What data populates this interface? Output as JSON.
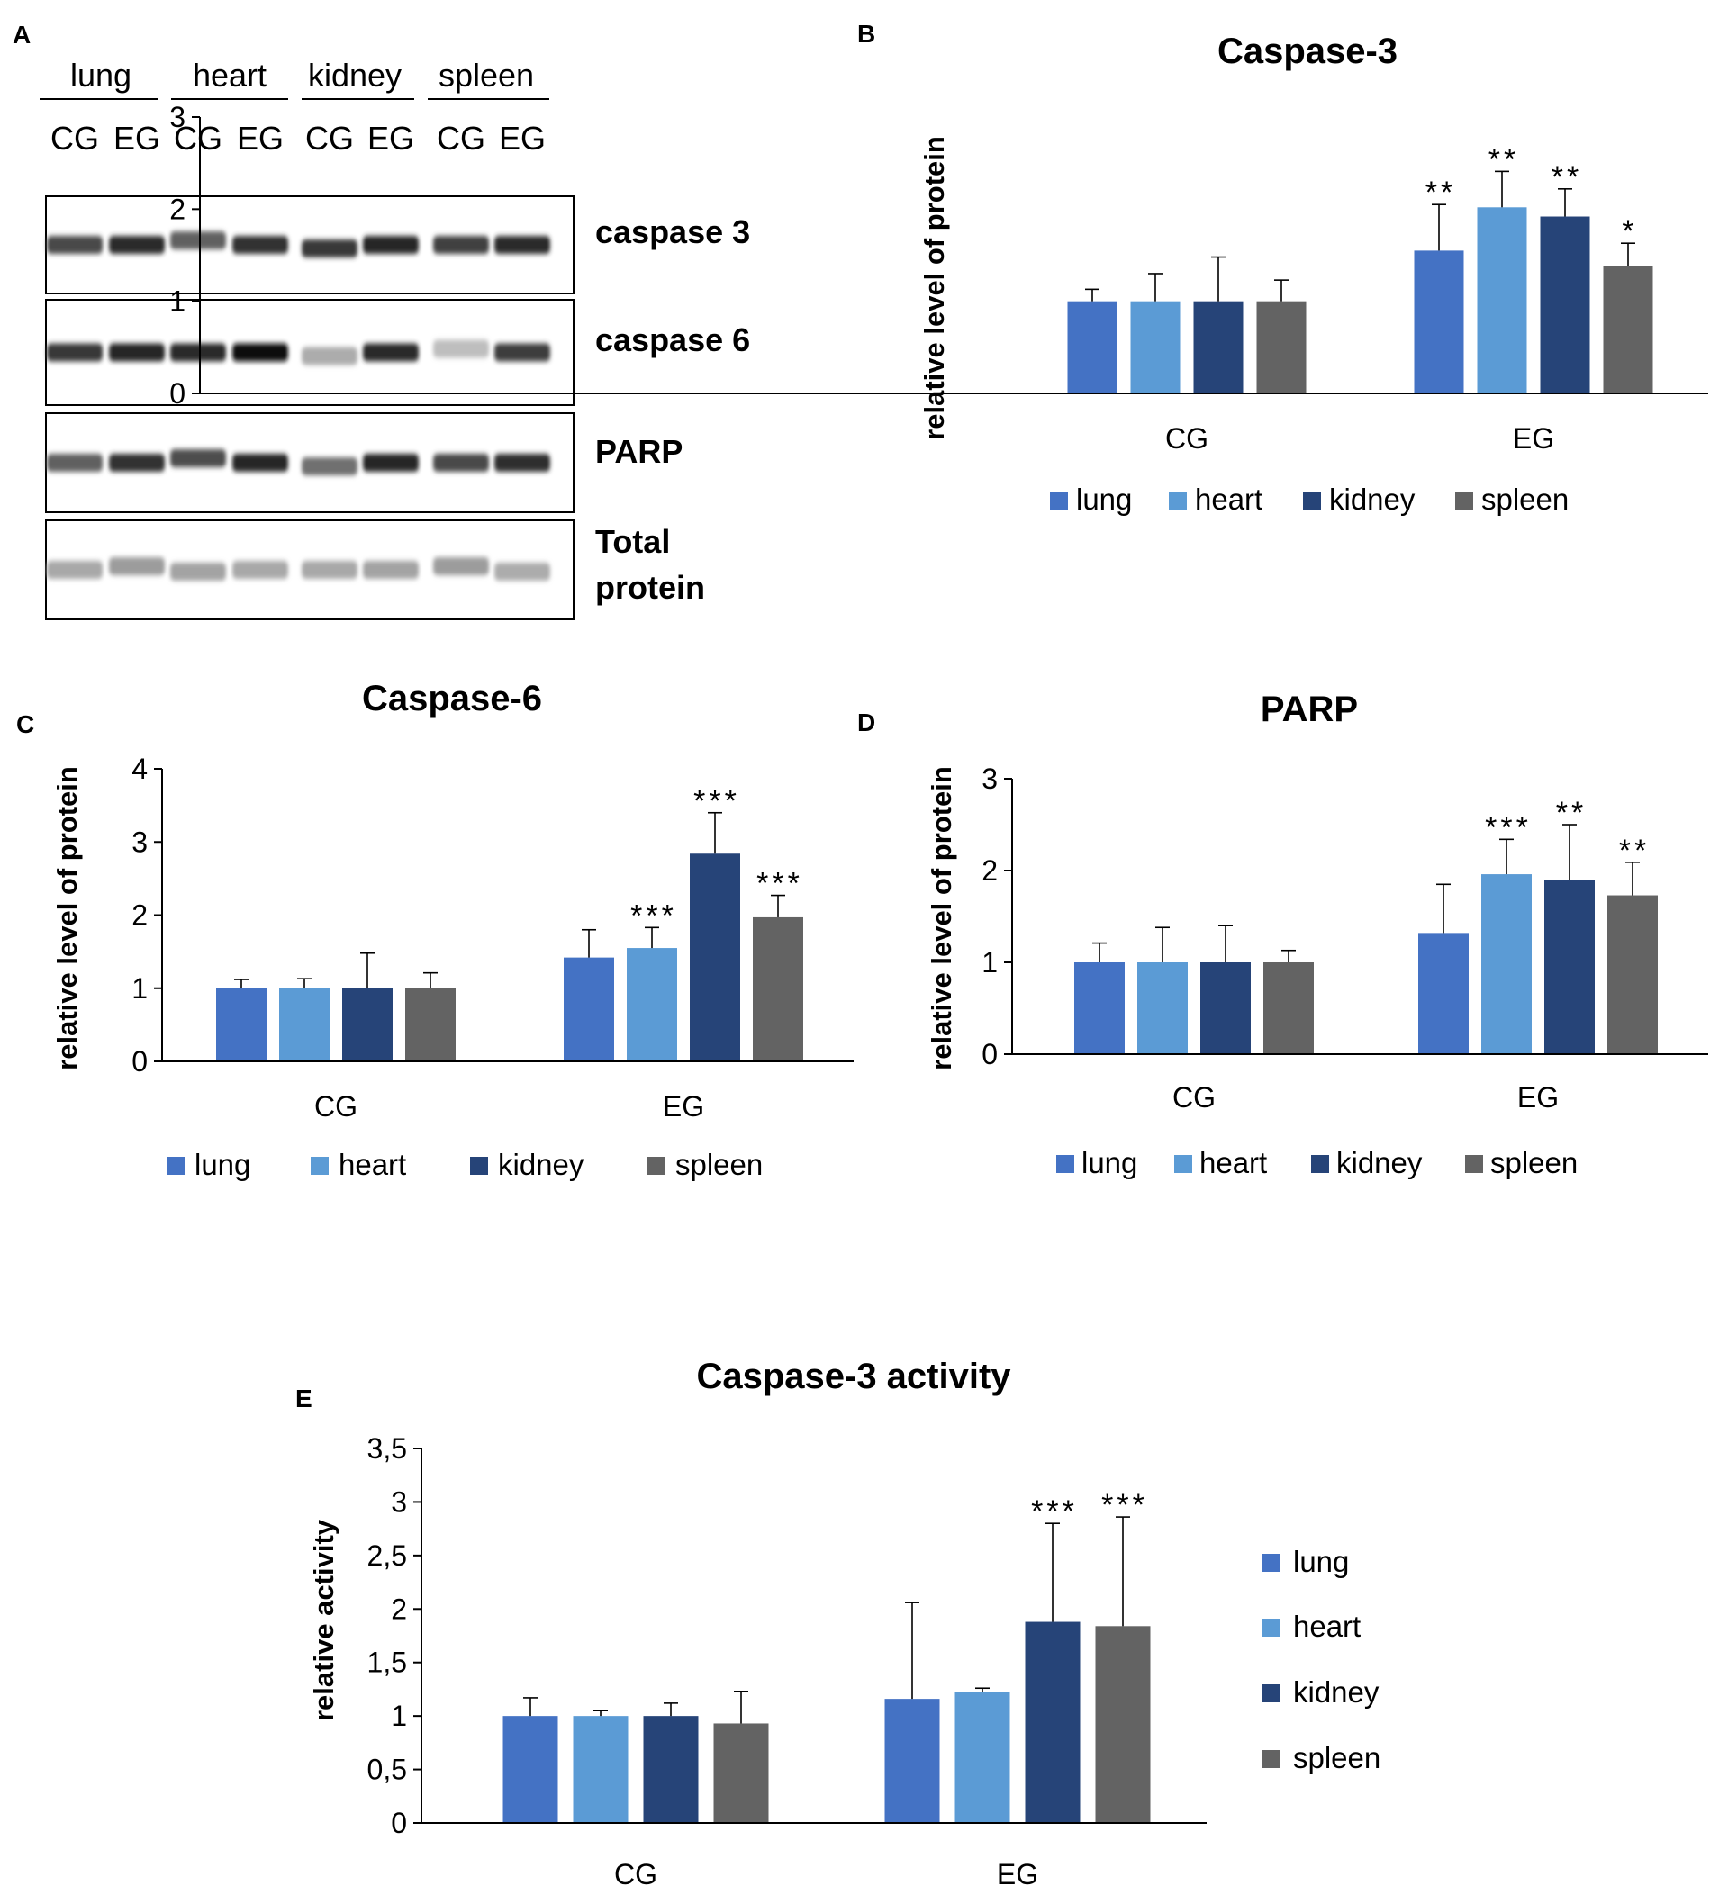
{
  "colors": {
    "lung": "#4472c4",
    "heart": "#5b9bd5",
    "kidney": "#264478",
    "spleen": "#636363"
  },
  "blot": {
    "panel_letter": "A",
    "tissues": [
      "lung",
      "heart",
      "kidney",
      "spleen"
    ],
    "groups": [
      "CG",
      "EG"
    ],
    "rows": [
      {
        "label": "caspase 3",
        "intensities": [
          0.72,
          0.85,
          0.62,
          0.82,
          0.8,
          0.88,
          0.76,
          0.86
        ]
      },
      {
        "label": "caspase 6",
        "intensities": [
          0.8,
          0.88,
          0.85,
          0.99,
          0.28,
          0.86,
          0.2,
          0.78
        ]
      },
      {
        "label": "PARP",
        "intensities": [
          0.62,
          0.82,
          0.7,
          0.88,
          0.55,
          0.88,
          0.72,
          0.84
        ]
      },
      {
        "label": "Total\nprotein",
        "intensities": [
          0.3,
          0.35,
          0.32,
          0.3,
          0.3,
          0.32,
          0.35,
          0.28
        ]
      }
    ]
  },
  "chart_data": [
    {
      "panel": "B",
      "type": "bar",
      "title": "Caspase-3",
      "xlabel": "",
      "ylabel": "relative level of protein",
      "categories": [
        "CG",
        "EG"
      ],
      "ylim": [
        0,
        3
      ],
      "yticks": [
        "0",
        "1",
        "2",
        "3"
      ],
      "legend_position": "bottom",
      "series": [
        {
          "name": "lung",
          "values": [
            1.0,
            1.55
          ],
          "errors": [
            0.13,
            0.5
          ],
          "stars": [
            "",
            "**"
          ]
        },
        {
          "name": "heart",
          "values": [
            1.0,
            2.02
          ],
          "errors": [
            0.3,
            0.39
          ],
          "stars": [
            "",
            "**"
          ]
        },
        {
          "name": "kidney",
          "values": [
            1.0,
            1.92
          ],
          "errors": [
            0.48,
            0.3
          ],
          "stars": [
            "",
            "**"
          ]
        },
        {
          "name": "spleen",
          "values": [
            1.0,
            1.38
          ],
          "errors": [
            0.23,
            0.25
          ],
          "stars": [
            "",
            "*"
          ]
        }
      ]
    },
    {
      "panel": "C",
      "type": "bar",
      "title": "Caspase-6",
      "xlabel": "",
      "ylabel": "relative level of protein",
      "categories": [
        "CG",
        "EG"
      ],
      "ylim": [
        0,
        4
      ],
      "yticks": [
        "0",
        "1",
        "2",
        "3",
        "4"
      ],
      "legend_position": "bottom",
      "series": [
        {
          "name": "lung",
          "values": [
            1.0,
            1.42
          ],
          "errors": [
            0.12,
            0.38
          ],
          "stars": [
            "",
            ""
          ]
        },
        {
          "name": "heart",
          "values": [
            1.0,
            1.55
          ],
          "errors": [
            0.13,
            0.28
          ],
          "stars": [
            "",
            "***"
          ]
        },
        {
          "name": "kidney",
          "values": [
            1.0,
            2.84
          ],
          "errors": [
            0.48,
            0.56
          ],
          "stars": [
            "",
            "***"
          ]
        },
        {
          "name": "spleen",
          "values": [
            1.0,
            1.97
          ],
          "errors": [
            0.21,
            0.3
          ],
          "stars": [
            "",
            "***"
          ]
        }
      ]
    },
    {
      "panel": "D",
      "type": "bar",
      "title": "PARP",
      "xlabel": "",
      "ylabel": "relative level of protein",
      "categories": [
        "CG",
        "EG"
      ],
      "ylim": [
        0,
        3
      ],
      "yticks": [
        "0",
        "1",
        "2",
        "3"
      ],
      "legend_position": "bottom",
      "series": [
        {
          "name": "lung",
          "values": [
            1.0,
            1.32
          ],
          "errors": [
            0.21,
            0.53
          ],
          "stars": [
            "",
            ""
          ]
        },
        {
          "name": "heart",
          "values": [
            1.0,
            1.96
          ],
          "errors": [
            0.38,
            0.38
          ],
          "stars": [
            "",
            "***"
          ]
        },
        {
          "name": "kidney",
          "values": [
            1.0,
            1.9
          ],
          "errors": [
            0.4,
            0.6
          ],
          "stars": [
            "",
            "**"
          ]
        },
        {
          "name": "spleen",
          "values": [
            1.0,
            1.73
          ],
          "errors": [
            0.13,
            0.36
          ],
          "stars": [
            "",
            "**"
          ]
        }
      ]
    },
    {
      "panel": "E",
      "type": "bar",
      "title": "Caspase-3 activity",
      "xlabel": "",
      "ylabel": "relative activity",
      "categories": [
        "CG",
        "EG"
      ],
      "ylim": [
        0,
        3.5
      ],
      "yticks": [
        "0",
        "0,5",
        "1",
        "1,5",
        "2",
        "2,5",
        "3",
        "3,5"
      ],
      "legend_position": "right",
      "series": [
        {
          "name": "lung",
          "values": [
            1.0,
            1.16
          ],
          "errors": [
            0.17,
            0.9
          ],
          "stars": [
            "",
            ""
          ]
        },
        {
          "name": "heart",
          "values": [
            1.0,
            1.22
          ],
          "errors": [
            0.05,
            0.04
          ],
          "stars": [
            "",
            ""
          ]
        },
        {
          "name": "kidney",
          "values": [
            1.0,
            1.88
          ],
          "errors": [
            0.12,
            0.92
          ],
          "stars": [
            "",
            "***"
          ]
        },
        {
          "name": "spleen",
          "values": [
            0.93,
            1.84
          ],
          "errors": [
            0.3,
            1.02
          ],
          "stars": [
            "",
            "***"
          ]
        }
      ]
    }
  ]
}
